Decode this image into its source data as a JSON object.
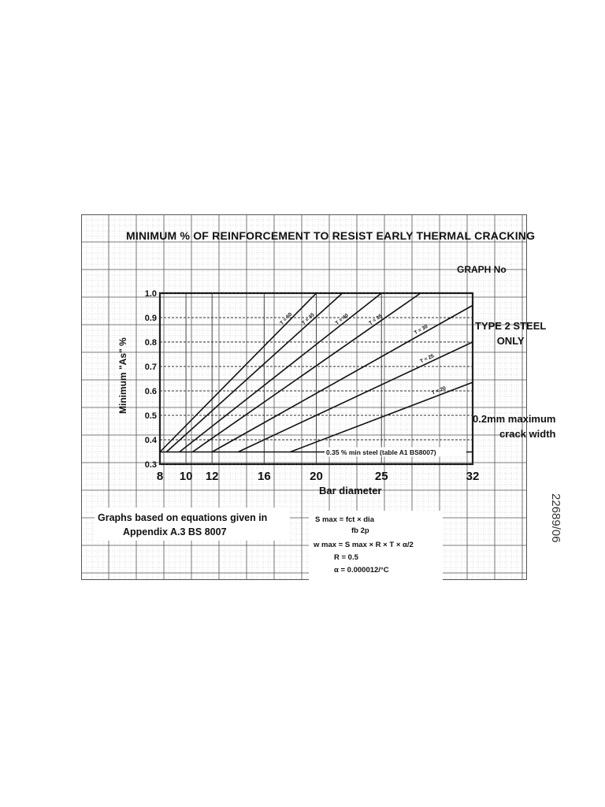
{
  "chart_data": {
    "type": "line",
    "title": "MINIMUM % OF REINFORCEMENT TO RESIST EARLY THERMAL CRACKING",
    "graph_no_label": "GRAPH No",
    "xlabel": "Bar diameter",
    "ylabel": "Minimum \"As\" %",
    "x_ticks": [
      8,
      10,
      12,
      16,
      20,
      25,
      32
    ],
    "y_ticks": [
      "0.3",
      "0.4",
      "0.5",
      "0.6",
      "0.7",
      "0.8",
      "0.9",
      "1.0"
    ],
    "xlim": [
      8,
      32
    ],
    "ylim": [
      0.3,
      1.0
    ],
    "grid": true,
    "series": [
      {
        "name": "T = 50",
        "x": [
          8,
          20
        ],
        "y": [
          0.35,
          1.0
        ]
      },
      {
        "name": "T = 45",
        "x": [
          8.5,
          22
        ],
        "y": [
          0.35,
          1.0
        ]
      },
      {
        "name": "T = 40",
        "x": [
          9.5,
          25
        ],
        "y": [
          0.35,
          1.0
        ]
      },
      {
        "name": "T = 35",
        "x": [
          10.5,
          28
        ],
        "y": [
          0.35,
          1.0
        ]
      },
      {
        "name": "T = 30",
        "x": [
          12,
          32
        ],
        "y": [
          0.35,
          0.95
        ]
      },
      {
        "name": "T = 25",
        "x": [
          14,
          32
        ],
        "y": [
          0.35,
          0.8
        ]
      },
      {
        "name": "T = 20",
        "x": [
          18,
          32
        ],
        "y": [
          0.35,
          0.635
        ]
      }
    ],
    "baseline": {
      "label": "0.35 % min steel (table A1 BS8007)",
      "y": 0.35
    }
  },
  "annotations": {
    "type_steel_line1": "TYPE 2 STEEL",
    "type_steel_line2": "ONLY",
    "crack_line1": "0.2mm maximum",
    "crack_line2": "crack width",
    "note_line1": "Graphs based on equations given in",
    "note_line2": "Appendix A.3   BS 8007",
    "formula_1": "S max = fct × dia",
    "formula_1b": "fb     2p",
    "formula_2": "w max = S max × R × T × α/2",
    "formula_3": "R = 0.5",
    "formula_4": "α = 0.000012/°C",
    "side_note": "22689/06"
  }
}
